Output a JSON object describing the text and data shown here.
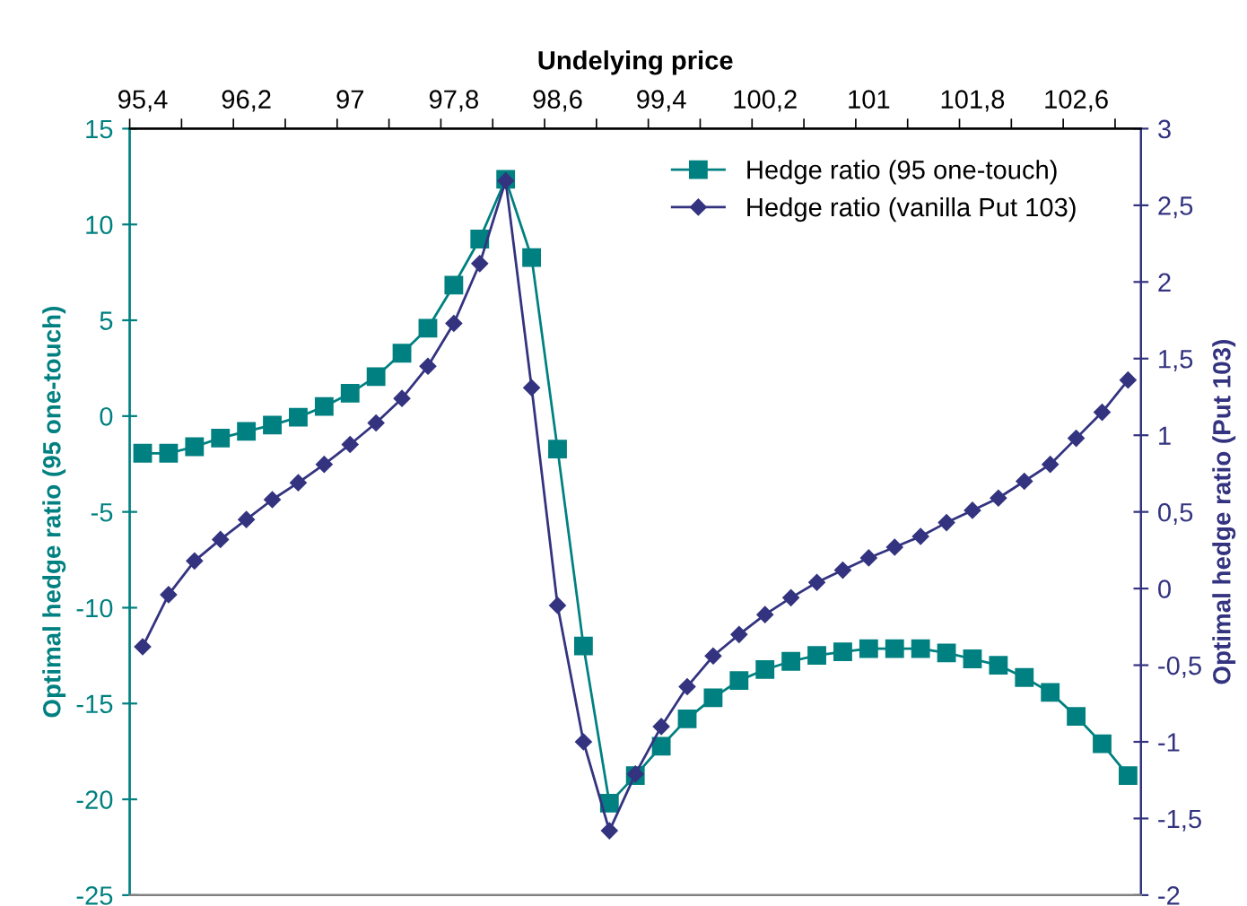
{
  "chart_data": {
    "type": "line",
    "xlabel": "Undelying price",
    "ylabel": "Optimal hedge ratio (95 one-touch)",
    "y2label": "Optimal hedge ratio (Put 103)",
    "categories": [
      "95,4",
      null,
      null,
      null,
      "96,2",
      null,
      null,
      null,
      "97",
      null,
      null,
      null,
      "97,8",
      null,
      null,
      null,
      "98,6",
      null,
      null,
      null,
      "99,4",
      null,
      null,
      null,
      "100,2",
      null,
      null,
      null,
      "101",
      null,
      null,
      null,
      "101,8",
      null,
      null,
      null,
      "102,6",
      null,
      null
    ],
    "series": [
      {
        "name": "Hedge ratio (95 one-touch)",
        "color": "#008080",
        "marker": "square",
        "values": [
          -1.94,
          -1.94,
          -1.6,
          -1.15,
          -0.8,
          -0.47,
          -0.06,
          0.5,
          1.19,
          2.06,
          3.28,
          4.59,
          6.83,
          9.24,
          12.36,
          8.27,
          -1.72,
          -12.0,
          -20.2,
          -18.76,
          -17.23,
          -15.8,
          -14.7,
          -13.8,
          -13.23,
          -12.8,
          -12.49,
          -12.3,
          -12.14,
          -12.14,
          -12.14,
          -12.36,
          -12.67,
          -13.0,
          -13.64,
          -14.42,
          -15.67,
          -17.1,
          -18.76
        ]
      },
      {
        "name": "Hedge ratio (vanilla Put 103)",
        "color": "#333380",
        "marker": "diamond",
        "axis": "y2",
        "values": [
          -0.38,
          -0.04,
          0.18,
          0.32,
          0.45,
          0.58,
          0.69,
          0.81,
          0.94,
          1.08,
          1.24,
          1.45,
          1.73,
          2.12,
          2.66,
          1.31,
          -0.11,
          -1.0,
          -1.58,
          -1.21,
          -0.9,
          -0.64,
          -0.44,
          -0.3,
          -0.17,
          -0.06,
          0.04,
          0.12,
          0.2,
          0.27,
          0.34,
          0.43,
          0.51,
          0.59,
          0.7,
          0.81,
          0.98,
          1.15,
          1.36
        ]
      }
    ],
    "ylim": [
      -25,
      15
    ],
    "yticks": [
      -25,
      -20,
      -15,
      -10,
      -5,
      0,
      5,
      10,
      15
    ],
    "y2lim": [
      -2,
      3
    ],
    "y2ticks": [
      -2,
      {
        "value": -1.5,
        "label": "-1,5"
      },
      -1,
      {
        "value": -0.5,
        "label": "-0,5"
      },
      0,
      {
        "value": 0.5,
        "label": "0,5"
      },
      1,
      {
        "value": 1.5,
        "label": "1,5"
      },
      2,
      {
        "value": 2.5,
        "label": "2,5"
      },
      3
    ],
    "grid": false,
    "legend": "top right",
    "line_style": "solid"
  }
}
